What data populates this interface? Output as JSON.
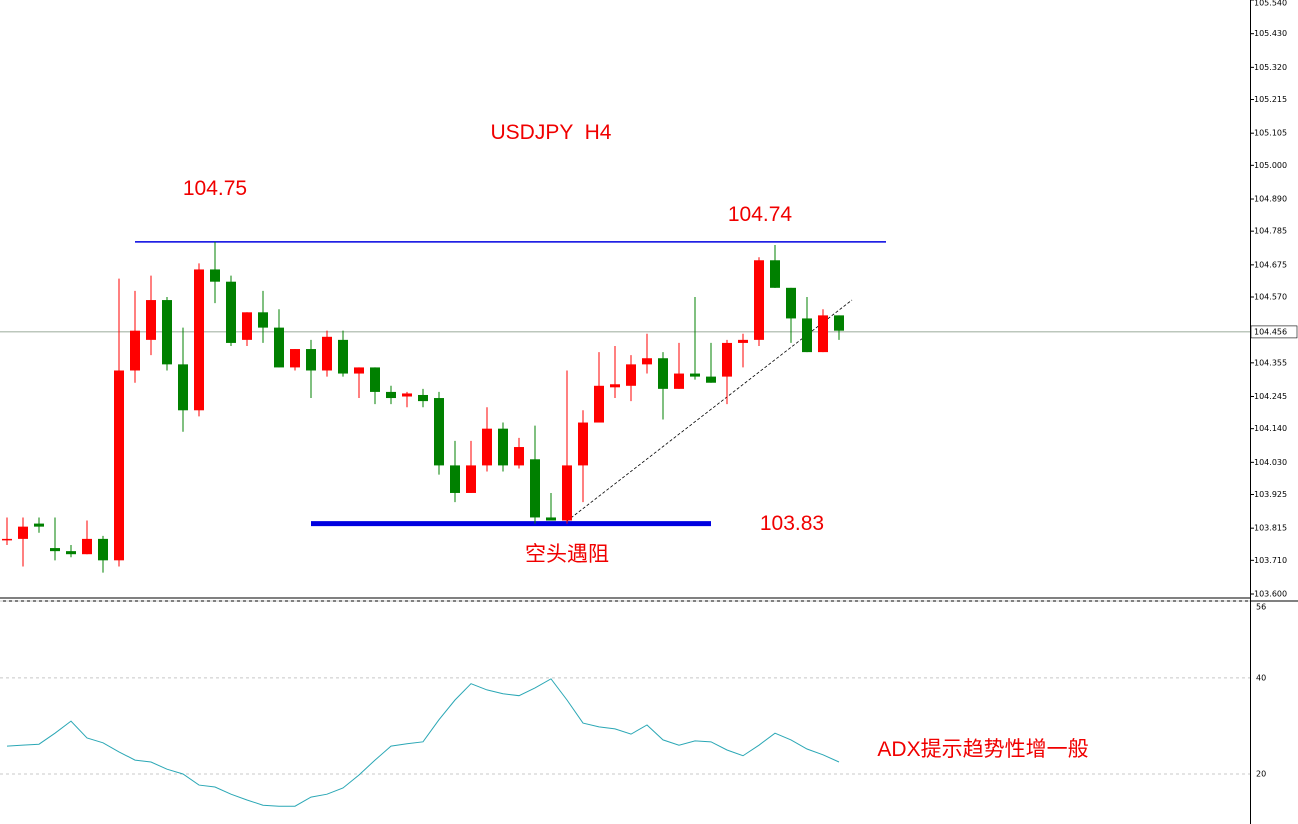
{
  "chart_data": [
    {
      "type": "candlestick",
      "title": "USDJPY  H4",
      "ylim": [
        103.6,
        105.54
      ],
      "yticks": [
        {
          "value": 103.6,
          "label": "103.600"
        },
        {
          "value": 103.71,
          "label": "103.710"
        },
        {
          "value": 103.815,
          "label": "103.815"
        },
        {
          "value": 103.925,
          "label": "103.925"
        },
        {
          "value": 104.03,
          "label": "104.030"
        },
        {
          "value": 104.14,
          "label": "104.140"
        },
        {
          "value": 104.245,
          "label": "104.245"
        },
        {
          "value": 104.355,
          "label": "104.355"
        },
        {
          "value": 104.57,
          "label": "104.570"
        },
        {
          "value": 104.675,
          "label": "104.675"
        },
        {
          "value": 104.785,
          "label": "104.785"
        },
        {
          "value": 104.89,
          "label": "104.890"
        },
        {
          "value": 105.0,
          "label": "105.000"
        },
        {
          "value": 105.105,
          "label": "105.105"
        },
        {
          "value": 105.215,
          "label": "105.215"
        },
        {
          "value": 105.32,
          "label": "105.320"
        },
        {
          "value": 105.43,
          "label": "105.430"
        },
        {
          "value": 105.54,
          "label": "105.540"
        }
      ],
      "up_color": "#ff0000",
      "down_color": "#008000",
      "open": [
        103.78,
        103.78,
        103.83,
        103.75,
        103.74,
        103.73,
        103.78,
        103.71,
        104.33,
        104.43,
        104.56,
        104.35,
        104.2,
        104.66,
        104.62,
        104.43,
        104.52,
        104.47,
        104.34,
        104.4,
        104.33,
        104.43,
        104.32,
        104.34,
        104.26,
        104.245,
        104.25,
        104.24,
        104.02,
        103.93,
        104.02,
        104.14,
        104.02,
        104.04,
        103.85,
        103.84,
        104.02,
        104.16,
        104.275,
        104.28,
        104.35,
        104.37,
        104.27,
        104.32,
        104.31,
        104.31,
        104.42,
        104.43,
        104.69,
        104.6,
        104.5,
        104.39,
        104.51
      ],
      "high": [
        103.85,
        103.85,
        103.85,
        103.85,
        103.76,
        103.84,
        103.79,
        104.63,
        104.59,
        104.64,
        104.57,
        104.47,
        104.68,
        104.75,
        104.64,
        104.52,
        104.59,
        104.53,
        104.4,
        104.43,
        104.46,
        104.46,
        104.34,
        104.34,
        104.28,
        104.26,
        104.27,
        104.26,
        104.1,
        104.1,
        104.21,
        104.16,
        104.11,
        104.15,
        103.93,
        104.33,
        104.2,
        104.39,
        104.41,
        104.38,
        104.45,
        104.39,
        104.42,
        104.57,
        104.42,
        104.43,
        104.45,
        104.7,
        104.74,
        104.6,
        104.57,
        104.53,
        104.51
      ],
      "low": [
        103.76,
        103.69,
        103.8,
        103.71,
        103.72,
        103.73,
        103.67,
        103.69,
        104.29,
        104.38,
        104.33,
        104.13,
        104.18,
        104.55,
        104.41,
        104.41,
        104.42,
        104.34,
        104.33,
        104.24,
        104.31,
        104.31,
        104.24,
        104.22,
        104.22,
        104.21,
        104.21,
        103.99,
        103.9,
        103.93,
        104.0,
        104.0,
        104.01,
        103.83,
        103.84,
        103.83,
        103.9,
        104.16,
        104.24,
        104.23,
        104.32,
        104.17,
        104.27,
        104.3,
        104.29,
        104.22,
        104.34,
        104.41,
        104.6,
        104.42,
        104.39,
        104.39,
        104.43
      ],
      "close": [
        103.78,
        103.82,
        103.82,
        103.74,
        103.73,
        103.78,
        103.71,
        104.33,
        104.46,
        104.56,
        104.35,
        104.2,
        104.66,
        104.62,
        104.42,
        104.52,
        104.47,
        104.34,
        104.4,
        104.33,
        104.44,
        104.32,
        104.34,
        104.26,
        104.24,
        104.255,
        104.23,
        104.02,
        103.93,
        104.02,
        104.14,
        104.02,
        104.08,
        103.85,
        103.84,
        104.02,
        104.16,
        104.28,
        104.285,
        104.35,
        104.37,
        104.27,
        104.32,
        104.31,
        104.29,
        104.42,
        104.43,
        104.69,
        104.6,
        104.5,
        104.39,
        104.51,
        104.46
      ],
      "last_price": {
        "value": 104.456,
        "label": "104.456"
      },
      "levels": [
        {
          "value": 104.75,
          "label": "104.75"
        },
        {
          "value": 104.74,
          "label": "104.74"
        },
        {
          "value": 103.83,
          "label": "103.83"
        }
      ],
      "annotation": "空头遇阻"
    },
    {
      "type": "line",
      "annotation": "ADX提示趋势性增一般",
      "ylim": [
        9.6,
        56
      ],
      "yticks": [
        20,
        40,
        56
      ],
      "grid": true,
      "series": [
        {
          "color": "#2aa7b5",
          "values": [
            25.8,
            26.0,
            26.2,
            28.5,
            31.0,
            27.5,
            26.5,
            24.6,
            22.9,
            22.5,
            21.0,
            20.0,
            17.7,
            17.3,
            15.8,
            14.6,
            13.5,
            13.3,
            13.3,
            15.2,
            15.8,
            17.1,
            19.8,
            22.9,
            25.8,
            26.3,
            26.7,
            31.3,
            35.4,
            38.8,
            37.5,
            36.7,
            36.3,
            37.9,
            39.8,
            35.4,
            30.6,
            29.8,
            29.4,
            28.3,
            30.2,
            27.1,
            26.0,
            26.9,
            26.7,
            25.0,
            23.8,
            26.0,
            28.5,
            27.1,
            25.2,
            24.0,
            22.5
          ]
        }
      ]
    }
  ]
}
